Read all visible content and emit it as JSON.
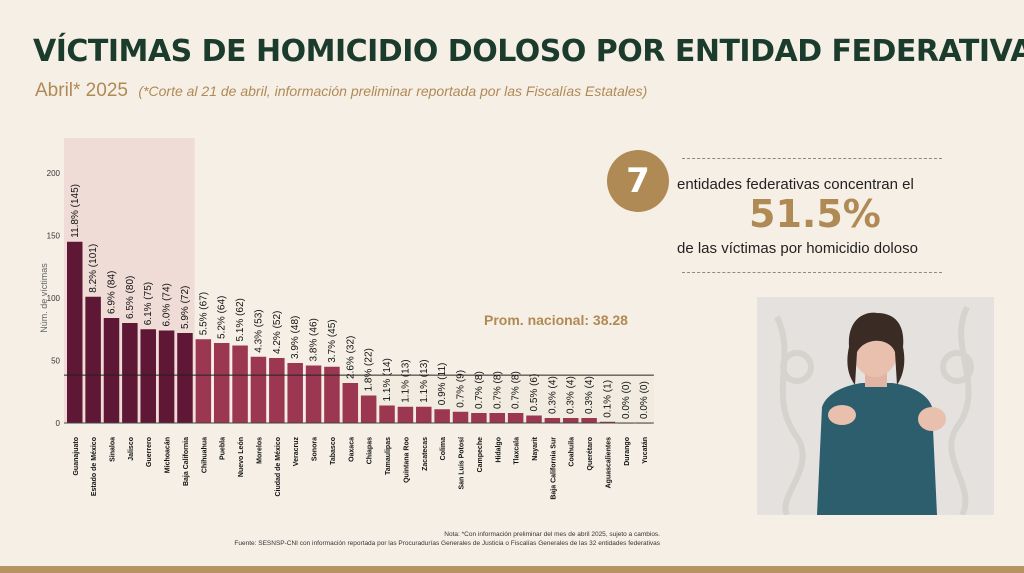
{
  "header": {
    "title": "VÍCTIMAS DE HOMICIDIO DOLOSO POR ENTIDAD FEDERATIVA",
    "period": "Abril* 2025",
    "cutoff_note": "(*Corte al 21 de abril, información preliminar reportada por las Fiscalías Estatales)"
  },
  "chart_data": {
    "type": "bar",
    "ylabel": "Núm. de víctimas",
    "ylim": [
      0,
      220
    ],
    "yticks": [
      0,
      50,
      100,
      150,
      200
    ],
    "categories": [
      "Guanajuato",
      "Estado de México",
      "Sinaloa",
      "Jalisco",
      "Guerrero",
      "Michoacán",
      "Baja California",
      "Chihuahua",
      "Puebla",
      "Nuevo León",
      "Morelos",
      "Ciudad de México",
      "Veracruz",
      "Sonora",
      "Tabasco",
      "Oaxaca",
      "Chiapas",
      "Tamaulipas",
      "Quintana Roo",
      "Zacatecas",
      "Colima",
      "San Luis Potosí",
      "Campeche",
      "Hidalgo",
      "Tlaxcala",
      "Nayarit",
      "Baja California Sur",
      "Coahuila",
      "Querétaro",
      "Aguascalientes",
      "Durango",
      "Yucatán"
    ],
    "values": [
      145,
      101,
      84,
      80,
      75,
      74,
      72,
      67,
      64,
      62,
      53,
      52,
      48,
      46,
      45,
      32,
      22,
      14,
      13,
      13,
      11,
      9,
      8,
      8,
      8,
      6,
      4,
      4,
      4,
      1,
      0,
      0
    ],
    "data_labels": [
      "11.8% (145)",
      "8.2% (101)",
      "6.9% (84)",
      "6.5% (80)",
      "6.1% (75)",
      "6.0% (74)",
      "5.9% (72)",
      "5.5% (67)",
      "5.2% (64)",
      "5.1% (62)",
      "4.3% (53)",
      "4.2% (52)",
      "3.9% (48)",
      "3.8% (46)",
      "3.7% (45)",
      "2.6% (32)",
      "1.8% (22)",
      "1.1% (14)",
      "1.1% (13)",
      "1.1% (13)",
      "0.9% (11)",
      "0.7% (9)",
      "0.7% (8)",
      "0.7% (8)",
      "0.7% (8)",
      "0.5% (6)",
      "0.3% (4)",
      "0.3% (4)",
      "0.3% (4)",
      "0.1% (1)",
      "0.0% (0)",
      "0.0% (0)"
    ],
    "highlight_count": 7,
    "national_average": 38.28,
    "national_average_label": "Prom. nacional: 38.28",
    "colors": {
      "highlight_bar": "#5e1734",
      "bar": "#9c3752",
      "highlight_bg": "#f0dcd6",
      "below_avg_bg": "#f1ecdf",
      "axis": "#444444"
    }
  },
  "kpi": {
    "count": "7",
    "line1": "entidades federativas concentran el",
    "percent": "51.5%",
    "line2": "de las víctimas por homicidio doloso"
  },
  "footer": {
    "note": "Nota: *Con información preliminar del mes de abril 2025, sujeto a cambios.",
    "source": "Fuente: SESNSP-CNI con información reportada por las Procuradurías Generales de Justicia o Fiscalías Generales de las 32 entidades federativas"
  }
}
